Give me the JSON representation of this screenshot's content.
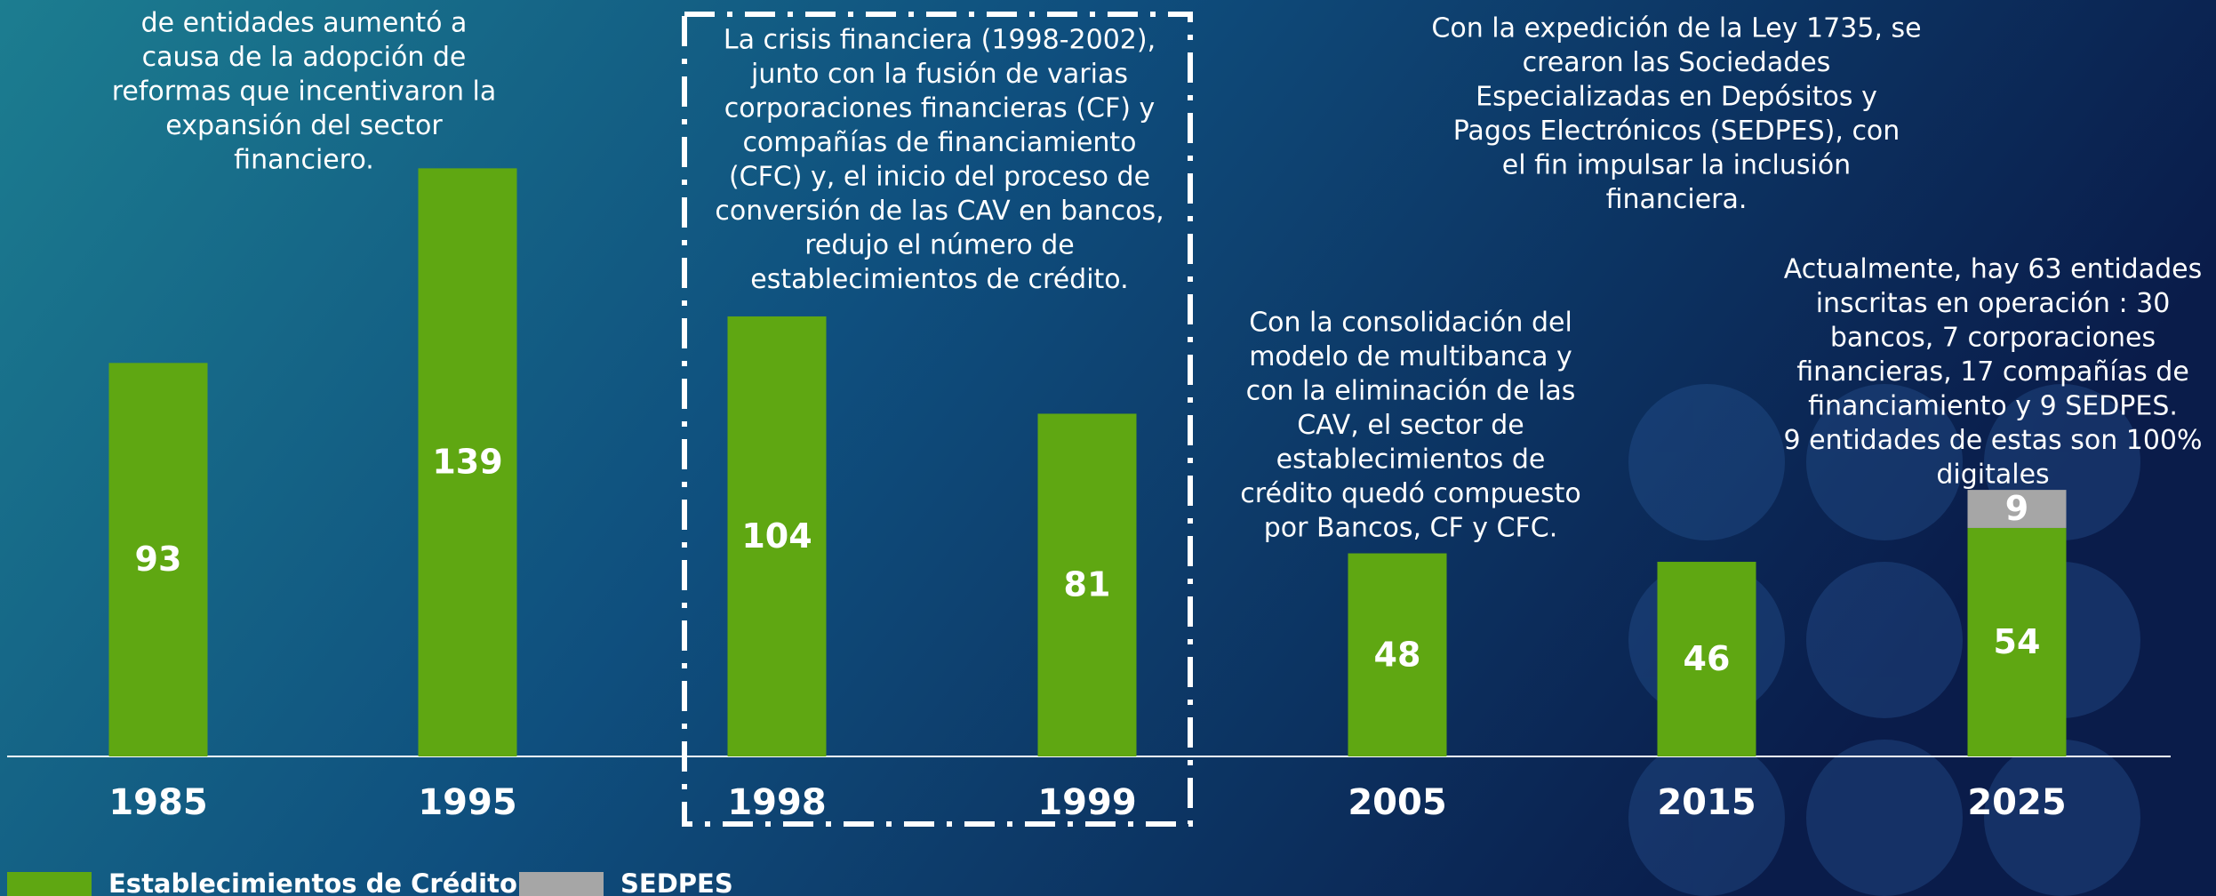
{
  "chart_data": {
    "type": "bar",
    "stacked": true,
    "categories": [
      "1985",
      "1995",
      "1998",
      "1999",
      "2005",
      "2015",
      "2025"
    ],
    "series": [
      {
        "name": "Establecimientos de Crédito",
        "color": "#5fa712",
        "values": [
          93,
          139,
          104,
          81,
          48,
          46,
          54
        ]
      },
      {
        "name": "SEDPES",
        "color": "#a6a6a6",
        "values": [
          null,
          null,
          null,
          null,
          null,
          null,
          9
        ]
      }
    ],
    "annotations": [
      {
        "lines": [
          "de entidades aumentó a",
          "causa de la adopción de",
          "reformas que incentivaron la",
          "expansión del sector",
          "financiero."
        ]
      },
      {
        "lines": [
          "La crisis financiera (1998-2002),",
          "junto con la fusión de varias",
          "corporaciones financieras (CF) y",
          "compañías de financiamiento",
          "(CFC) y, el inicio del proceso de",
          "conversión de las CAV en bancos,",
          "redujo el número de",
          "establecimientos de crédito."
        ]
      },
      {
        "lines": [
          "Con la consolidación del",
          "modelo de multibanca y",
          "con la eliminación de las",
          "CAV, el sector de",
          "establecimientos de",
          "crédito quedó compuesto",
          "por Bancos, CF y CFC."
        ]
      },
      {
        "lines": [
          "Con la expedición de la Ley 1735, se",
          "crearon las Sociedades",
          "Especializadas en Depósitos y",
          "Pagos Electrónicos (SEDPES), con",
          "el fin impulsar la inclusión",
          "financiera."
        ]
      },
      {
        "lines": [
          "Actualmente, hay 63 entidades",
          "inscritas en operación : 30",
          "bancos, 7 corporaciones",
          "financieras, 17 compañías de",
          "financiamiento y 9 SEDPES.",
          "9 entidades de estas son 100%",
          "digitales"
        ]
      }
    ]
  }
}
